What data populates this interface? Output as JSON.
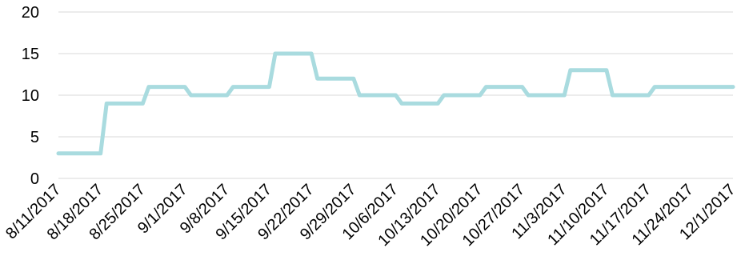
{
  "chart_data": {
    "type": "line",
    "x": [
      "8/11/2017",
      "8/18/2017",
      "8/25/2017",
      "9/1/2017",
      "9/8/2017",
      "9/15/2017",
      "9/22/2017",
      "9/29/2017",
      "10/6/2017",
      "10/13/2017",
      "10/20/2017",
      "10/27/2017",
      "11/3/2017",
      "11/10/2017",
      "11/17/2017",
      "11/24/2017",
      "12/1/2017"
    ],
    "y_ticks": [
      "0",
      "5",
      "10",
      "15",
      "20"
    ],
    "ylim": [
      0,
      20
    ],
    "grid": true,
    "legend": "none",
    "series": [
      {
        "color": "#a9dbdf",
        "points": [
          [
            "2017-08-11",
            3
          ],
          [
            "2017-08-18",
            3
          ],
          [
            "2017-08-19",
            9
          ],
          [
            "2017-08-25",
            9
          ],
          [
            "2017-08-26",
            11
          ],
          [
            "2017-09-01",
            11
          ],
          [
            "2017-09-02",
            10
          ],
          [
            "2017-09-08",
            10
          ],
          [
            "2017-09-09",
            11
          ],
          [
            "2017-09-15",
            11
          ],
          [
            "2017-09-16",
            15
          ],
          [
            "2017-09-22",
            15
          ],
          [
            "2017-09-23",
            12
          ],
          [
            "2017-09-29",
            12
          ],
          [
            "2017-09-30",
            10
          ],
          [
            "2017-10-06",
            10
          ],
          [
            "2017-10-07",
            9
          ],
          [
            "2017-10-13",
            9
          ],
          [
            "2017-10-14",
            10
          ],
          [
            "2017-10-20",
            10
          ],
          [
            "2017-10-21",
            11
          ],
          [
            "2017-10-27",
            11
          ],
          [
            "2017-10-28",
            10
          ],
          [
            "2017-11-03",
            10
          ],
          [
            "2017-11-04",
            13
          ],
          [
            "2017-11-10",
            13
          ],
          [
            "2017-11-11",
            10
          ],
          [
            "2017-11-17",
            10
          ],
          [
            "2017-11-18",
            11
          ],
          [
            "2017-11-24",
            11
          ],
          [
            "2017-12-01",
            11
          ]
        ]
      }
    ]
  }
}
